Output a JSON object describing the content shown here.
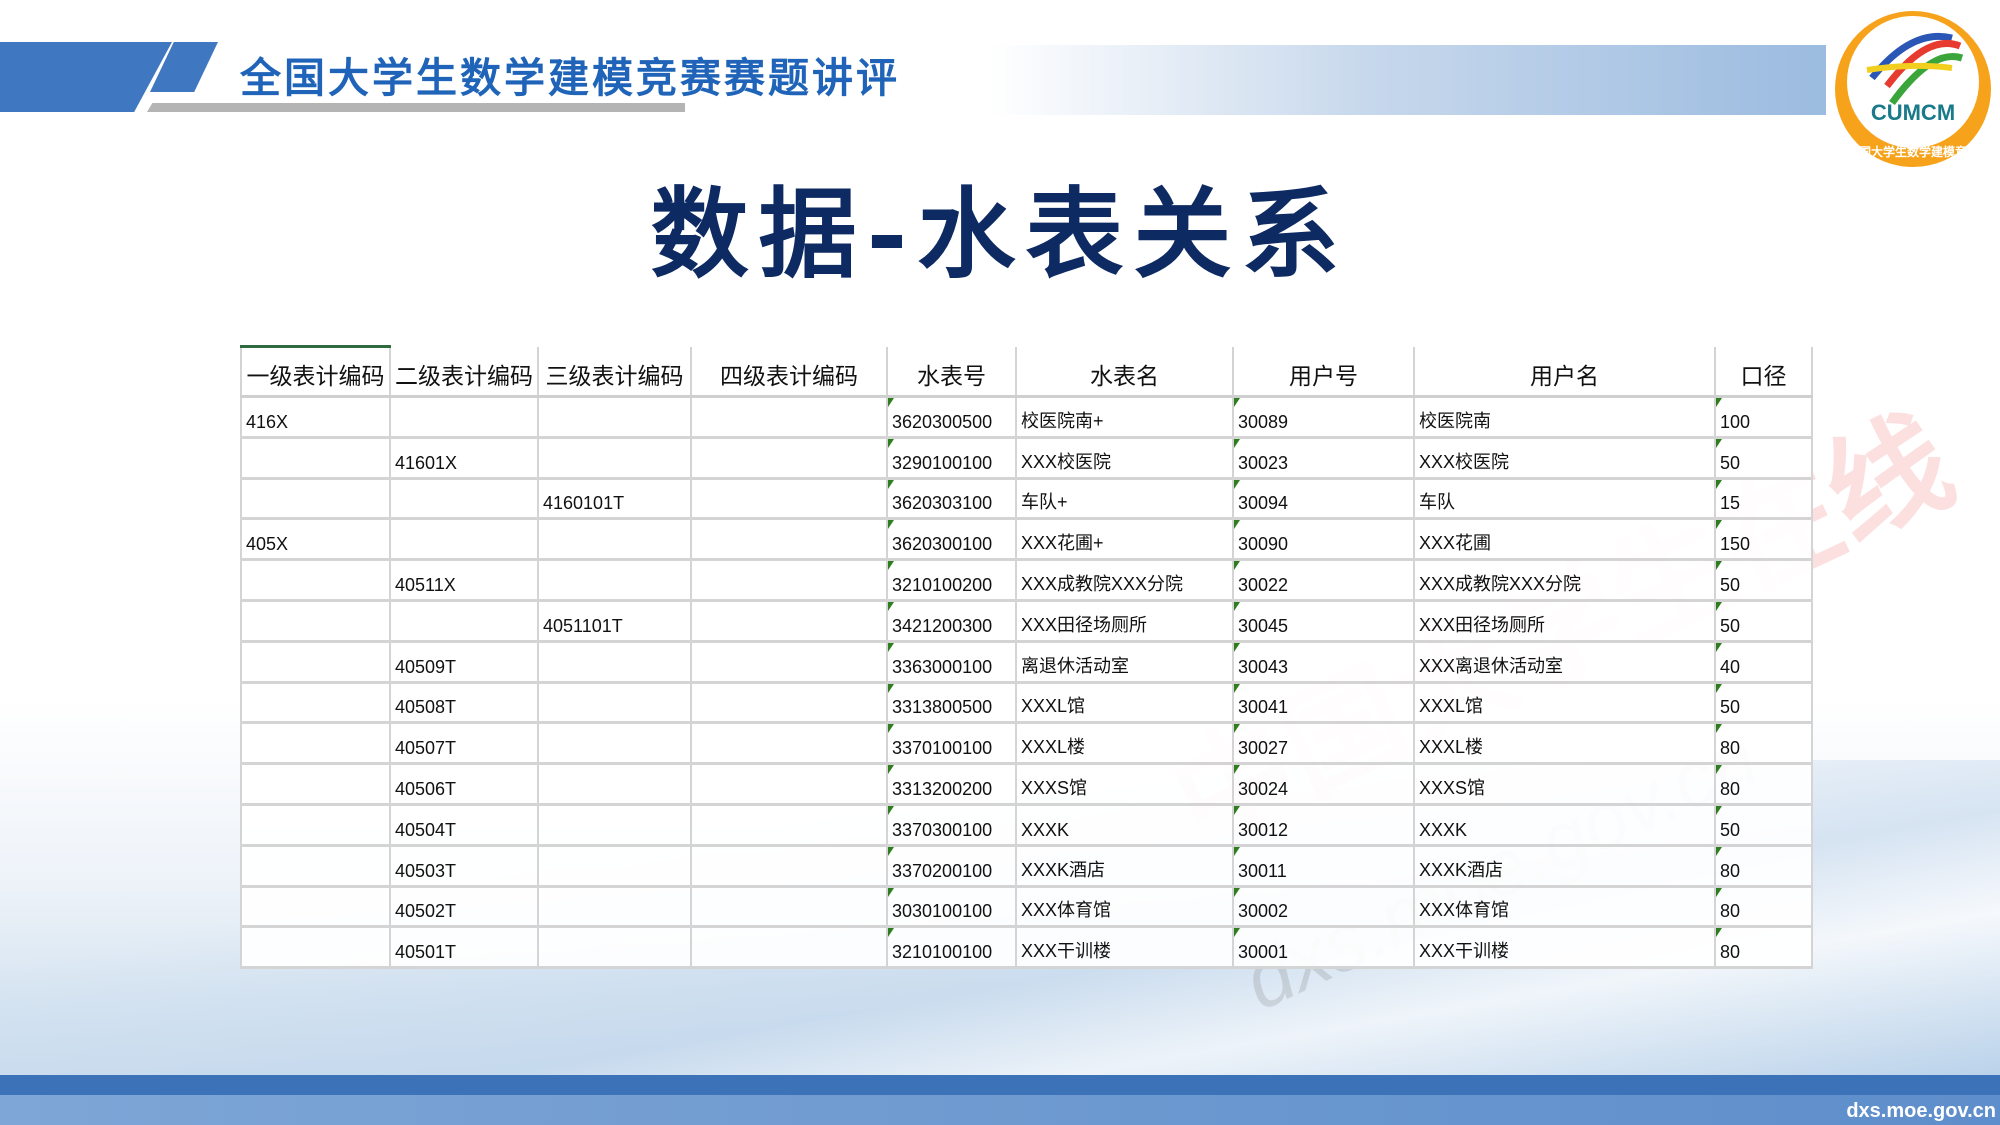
{
  "header": {
    "title": "全国大学生数学建模竞赛赛题讲评"
  },
  "logo": {
    "text": "CUMCM",
    "ring_text": "中国大学生数学建模竞赛"
  },
  "slide": {
    "title": "数据-水表关系"
  },
  "table": {
    "columns": [
      "一级表计编码",
      "二级表计编码",
      "三级表计编码",
      "四级表计编码",
      "水表号",
      "水表名",
      "用户号",
      "用户名",
      "口径"
    ],
    "rows": [
      [
        "416X",
        "",
        "",
        "",
        "3620300500",
        "校医院南+",
        "30089",
        "校医院南",
        "100"
      ],
      [
        "",
        "41601X",
        "",
        "",
        "3290100100",
        "XXX校医院",
        "30023",
        "XXX校医院",
        "50"
      ],
      [
        "",
        "",
        "4160101T",
        "",
        "3620303100",
        "车队+",
        "30094",
        "车队",
        "15"
      ],
      [
        "405X",
        "",
        "",
        "",
        "3620300100",
        "XXX花圃+",
        "30090",
        "XXX花圃",
        "150"
      ],
      [
        "",
        "40511X",
        "",
        "",
        "3210100200",
        "XXX成教院XXX分院",
        "30022",
        "XXX成教院XXX分院",
        "50"
      ],
      [
        "",
        "",
        "4051101T",
        "",
        "3421200300",
        "XXX田径场厕所",
        "30045",
        "XXX田径场厕所",
        "50"
      ],
      [
        "",
        "40509T",
        "",
        "",
        "3363000100",
        "离退休活动室",
        "30043",
        "XXX离退休活动室",
        "40"
      ],
      [
        "",
        "40508T",
        "",
        "",
        "3313800500",
        "XXXL馆",
        "30041",
        "XXXL馆",
        "50"
      ],
      [
        "",
        "40507T",
        "",
        "",
        "3370100100",
        "XXXL楼",
        "30027",
        "XXXL楼",
        "80"
      ],
      [
        "",
        "40506T",
        "",
        "",
        "3313200200",
        "XXXS馆",
        "30024",
        "XXXS馆",
        "80"
      ],
      [
        "",
        "40504T",
        "",
        "",
        "3370300100",
        "XXXK",
        "30012",
        "XXXK",
        "50"
      ],
      [
        "",
        "40503T",
        "",
        "",
        "3370200100",
        "XXXK酒店",
        "30011",
        "XXXK酒店",
        "80"
      ],
      [
        "",
        "40502T",
        "",
        "",
        "3030100100",
        "XXX体育馆",
        "30002",
        "XXX体育馆",
        "80"
      ],
      [
        "",
        "40501T",
        "",
        "",
        "3210100100",
        "XXX干训楼",
        "30001",
        "XXX干训楼",
        "80"
      ]
    ]
  },
  "watermark": {
    "cn": "中国大学生在线",
    "url": "dxs.moe.gov.cn"
  },
  "footer": {
    "site": "dxs.moe.gov.cn"
  },
  "colors": {
    "accent": "#3f78c1",
    "title": "#0e2a63",
    "header_text": "#1f64b8",
    "indicator": "#2e7d1f"
  }
}
